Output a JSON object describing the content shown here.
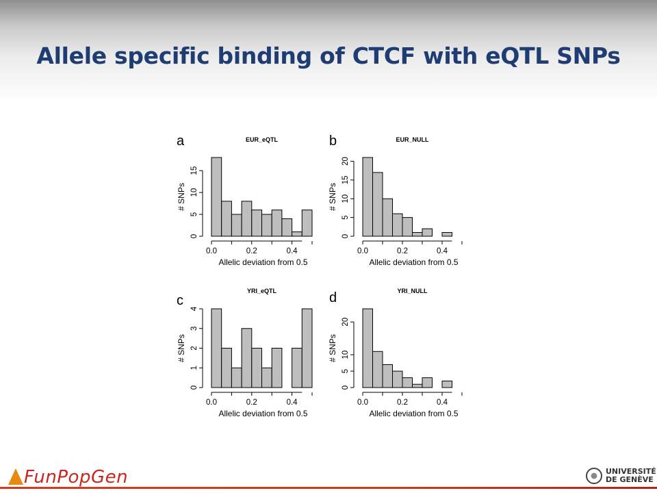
{
  "slide": {
    "title": "Allele specific binding of CTCF with eQTL SNPs"
  },
  "footer": {
    "left_logo_text": "FunPopGen",
    "right_logo_line1": "UNIVERSITÉ",
    "right_logo_line2": "DE GENÈVE"
  },
  "colors": {
    "title": "#1f3c73",
    "bar_fill": "#bebebe",
    "footer_rule": "#c83d1a",
    "logo_text": "#c8261e"
  },
  "chart_data": [
    {
      "panel_label": "a",
      "title": "EUR_eQTL",
      "type": "bar",
      "bin_edges": [
        0.0,
        0.05,
        0.1,
        0.15,
        0.2,
        0.25,
        0.3,
        0.35,
        0.4,
        0.45,
        0.5
      ],
      "values": [
        18,
        8,
        5,
        8,
        6,
        5,
        6,
        4,
        1,
        6
      ],
      "xlabel": "Allelic deviation from 0.5",
      "ylabel": "# SNPs",
      "xticks": [
        0.0,
        0.2,
        0.4
      ],
      "yticks": [
        0,
        5,
        10,
        15
      ],
      "xlim": [
        0.0,
        0.5
      ],
      "ylim": [
        0,
        18
      ]
    },
    {
      "panel_label": "b",
      "title": "EUR_NULL",
      "type": "bar",
      "bin_edges": [
        0.0,
        0.05,
        0.1,
        0.15,
        0.2,
        0.25,
        0.3,
        0.35,
        0.4,
        0.45,
        0.5
      ],
      "values": [
        21,
        17,
        10,
        6,
        5,
        1,
        2,
        0,
        1,
        0
      ],
      "xlabel": "Allelic deviation from 0.5",
      "ylabel": "# SNPs",
      "xticks": [
        0.0,
        0.2,
        0.4
      ],
      "yticks": [
        0,
        5,
        10,
        15,
        20
      ],
      "xlim": [
        0.0,
        0.5
      ],
      "ylim": [
        0,
        21
      ]
    },
    {
      "panel_label": "c",
      "title": "YRI_eQTL",
      "type": "bar",
      "bin_edges": [
        0.0,
        0.05,
        0.1,
        0.15,
        0.2,
        0.25,
        0.3,
        0.35,
        0.4,
        0.45,
        0.5
      ],
      "values": [
        4,
        2,
        1,
        3,
        2,
        1,
        2,
        0,
        2,
        4
      ],
      "xlabel": "Allelic deviation from 0.5",
      "ylabel": "# SNPs",
      "xticks": [
        0.0,
        0.2,
        0.4
      ],
      "yticks": [
        0,
        1,
        2,
        3,
        4
      ],
      "xlim": [
        0.0,
        0.5
      ],
      "ylim": [
        0,
        4
      ]
    },
    {
      "panel_label": "d",
      "title": "YRI_NULL",
      "type": "bar",
      "bin_edges": [
        0.0,
        0.05,
        0.1,
        0.15,
        0.2,
        0.25,
        0.3,
        0.35,
        0.4,
        0.45,
        0.5
      ],
      "values": [
        24,
        11,
        7,
        5,
        3,
        1,
        3,
        0,
        2,
        0
      ],
      "xlabel": "Allelic deviation from 0.5",
      "ylabel": "# SNPs",
      "xticks": [
        0.0,
        0.2,
        0.4
      ],
      "yticks": [
        0,
        5,
        10,
        20
      ],
      "xlim": [
        0.0,
        0.5
      ],
      "ylim": [
        0,
        24
      ]
    }
  ]
}
